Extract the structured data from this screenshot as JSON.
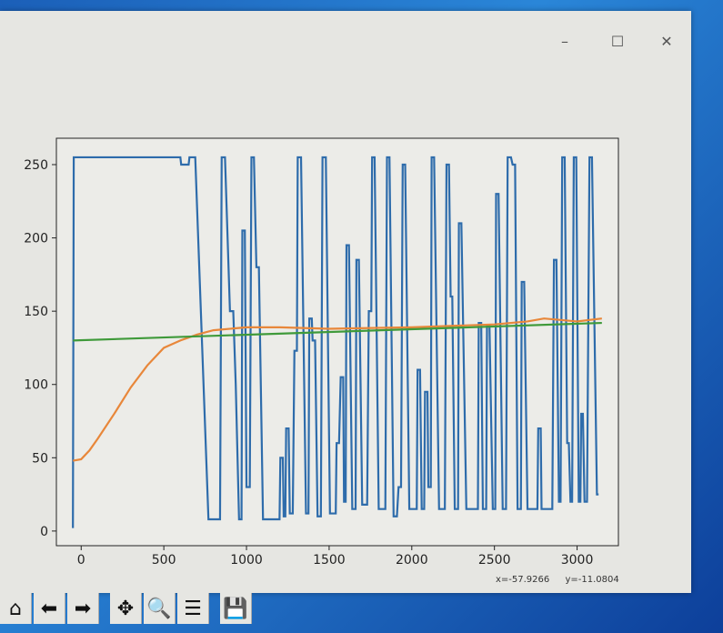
{
  "window": {
    "buttons": {
      "minimize": "–",
      "maximize": "☐",
      "close": "✕"
    }
  },
  "status": {
    "x_readout": "x=-57.9266",
    "y_readout": "y=-11.0804"
  },
  "toolbar": {
    "icons": [
      "home-icon",
      "back-arrow-icon",
      "forward-arrow-icon",
      "pan-move-icon",
      "zoom-magnifier-icon",
      "configure-subplots-icon",
      "save-floppy-icon"
    ],
    "glyphs": [
      "⌂",
      "⬅",
      "➡",
      "✥",
      "🔍",
      "☰",
      "💾"
    ]
  },
  "chart_data": {
    "type": "line",
    "title": "",
    "xlabel": "",
    "ylabel": "",
    "xlim": [
      -150,
      3250
    ],
    "ylim": [
      -10,
      268
    ],
    "grid": false,
    "xticks": [
      0,
      500,
      1000,
      1500,
      2000,
      2500,
      3000
    ],
    "xtick_labels": [
      "0",
      "500",
      "1000",
      "1500",
      "2000",
      "2500",
      "3000"
    ],
    "yticks": [
      0,
      50,
      100,
      150,
      200,
      250
    ],
    "ytick_labels": [
      "0",
      "50",
      "100",
      "150",
      "200",
      "250"
    ],
    "series": [
      {
        "color": "#2e6cab",
        "points": [
          [
            -50,
            2
          ],
          [
            -45,
            255
          ],
          [
            600,
            255
          ],
          [
            605,
            250
          ],
          [
            650,
            250
          ],
          [
            655,
            255
          ],
          [
            690,
            255
          ],
          [
            770,
            8
          ],
          [
            840,
            8
          ],
          [
            850,
            255
          ],
          [
            870,
            255
          ],
          [
            900,
            150
          ],
          [
            920,
            150
          ],
          [
            935,
            100
          ],
          [
            955,
            8
          ],
          [
            970,
            8
          ],
          [
            975,
            205
          ],
          [
            990,
            205
          ],
          [
            1000,
            30
          ],
          [
            1020,
            30
          ],
          [
            1030,
            255
          ],
          [
            1045,
            255
          ],
          [
            1060,
            180
          ],
          [
            1075,
            180
          ],
          [
            1100,
            8
          ],
          [
            1200,
            8
          ],
          [
            1205,
            50
          ],
          [
            1220,
            50
          ],
          [
            1225,
            10
          ],
          [
            1235,
            10
          ],
          [
            1240,
            70
          ],
          [
            1255,
            70
          ],
          [
            1262,
            12
          ],
          [
            1280,
            12
          ],
          [
            1290,
            123
          ],
          [
            1305,
            123
          ],
          [
            1310,
            255
          ],
          [
            1330,
            255
          ],
          [
            1360,
            12
          ],
          [
            1375,
            12
          ],
          [
            1380,
            145
          ],
          [
            1395,
            145
          ],
          [
            1400,
            130
          ],
          [
            1415,
            130
          ],
          [
            1430,
            10
          ],
          [
            1450,
            10
          ],
          [
            1460,
            255
          ],
          [
            1480,
            255
          ],
          [
            1505,
            12
          ],
          [
            1540,
            12
          ],
          [
            1545,
            60
          ],
          [
            1560,
            60
          ],
          [
            1570,
            105
          ],
          [
            1585,
            105
          ],
          [
            1590,
            20
          ],
          [
            1600,
            20
          ],
          [
            1605,
            195
          ],
          [
            1620,
            195
          ],
          [
            1640,
            15
          ],
          [
            1660,
            15
          ],
          [
            1665,
            185
          ],
          [
            1680,
            185
          ],
          [
            1700,
            18
          ],
          [
            1730,
            18
          ],
          [
            1740,
            150
          ],
          [
            1755,
            150
          ],
          [
            1760,
            255
          ],
          [
            1775,
            255
          ],
          [
            1800,
            15
          ],
          [
            1840,
            15
          ],
          [
            1850,
            255
          ],
          [
            1865,
            255
          ],
          [
            1890,
            10
          ],
          [
            1910,
            10
          ],
          [
            1920,
            30
          ],
          [
            1935,
            30
          ],
          [
            1945,
            250
          ],
          [
            1960,
            250
          ],
          [
            1985,
            15
          ],
          [
            2030,
            15
          ],
          [
            2035,
            110
          ],
          [
            2050,
            110
          ],
          [
            2060,
            15
          ],
          [
            2075,
            15
          ],
          [
            2080,
            95
          ],
          [
            2095,
            95
          ],
          [
            2100,
            30
          ],
          [
            2115,
            30
          ],
          [
            2120,
            255
          ],
          [
            2135,
            255
          ],
          [
            2165,
            15
          ],
          [
            2200,
            15
          ],
          [
            2210,
            250
          ],
          [
            2225,
            250
          ],
          [
            2235,
            160
          ],
          [
            2245,
            160
          ],
          [
            2260,
            15
          ],
          [
            2280,
            15
          ],
          [
            2285,
            210
          ],
          [
            2300,
            210
          ],
          [
            2330,
            15
          ],
          [
            2400,
            15
          ],
          [
            2405,
            142
          ],
          [
            2420,
            142
          ],
          [
            2430,
            15
          ],
          [
            2450,
            15
          ],
          [
            2455,
            140
          ],
          [
            2470,
            140
          ],
          [
            2490,
            15
          ],
          [
            2505,
            15
          ],
          [
            2510,
            230
          ],
          [
            2525,
            230
          ],
          [
            2550,
            15
          ],
          [
            2570,
            15
          ],
          [
            2580,
            255
          ],
          [
            2600,
            255
          ],
          [
            2610,
            250
          ],
          [
            2625,
            250
          ],
          [
            2640,
            15
          ],
          [
            2660,
            15
          ],
          [
            2665,
            170
          ],
          [
            2680,
            170
          ],
          [
            2700,
            15
          ],
          [
            2760,
            15
          ],
          [
            2765,
            70
          ],
          [
            2780,
            70
          ],
          [
            2785,
            15
          ],
          [
            2850,
            15
          ],
          [
            2860,
            185
          ],
          [
            2875,
            185
          ],
          [
            2890,
            20
          ],
          [
            2900,
            20
          ],
          [
            2910,
            255
          ],
          [
            2925,
            255
          ],
          [
            2940,
            60
          ],
          [
            2950,
            60
          ],
          [
            2960,
            20
          ],
          [
            2970,
            20
          ],
          [
            2980,
            255
          ],
          [
            2995,
            255
          ],
          [
            3010,
            20
          ],
          [
            3020,
            20
          ],
          [
            3025,
            80
          ],
          [
            3035,
            80
          ],
          [
            3045,
            20
          ],
          [
            3060,
            20
          ],
          [
            3075,
            255
          ],
          [
            3090,
            255
          ],
          [
            3120,
            25
          ],
          [
            3130,
            25
          ]
        ]
      },
      {
        "color": "#e8873a",
        "points": [
          [
            -50,
            48
          ],
          [
            0,
            49
          ],
          [
            50,
            55
          ],
          [
            100,
            63
          ],
          [
            200,
            80
          ],
          [
            300,
            98
          ],
          [
            400,
            113
          ],
          [
            500,
            125
          ],
          [
            600,
            130
          ],
          [
            700,
            134
          ],
          [
            800,
            137
          ],
          [
            1000,
            139
          ],
          [
            1200,
            139
          ],
          [
            1500,
            138
          ],
          [
            2000,
            139
          ],
          [
            2500,
            141
          ],
          [
            2700,
            143
          ],
          [
            2800,
            145
          ],
          [
            3000,
            143
          ],
          [
            3150,
            145
          ]
        ]
      },
      {
        "color": "#3f9a3a",
        "points": [
          [
            -50,
            130
          ],
          [
            3150,
            142
          ]
        ]
      }
    ]
  }
}
